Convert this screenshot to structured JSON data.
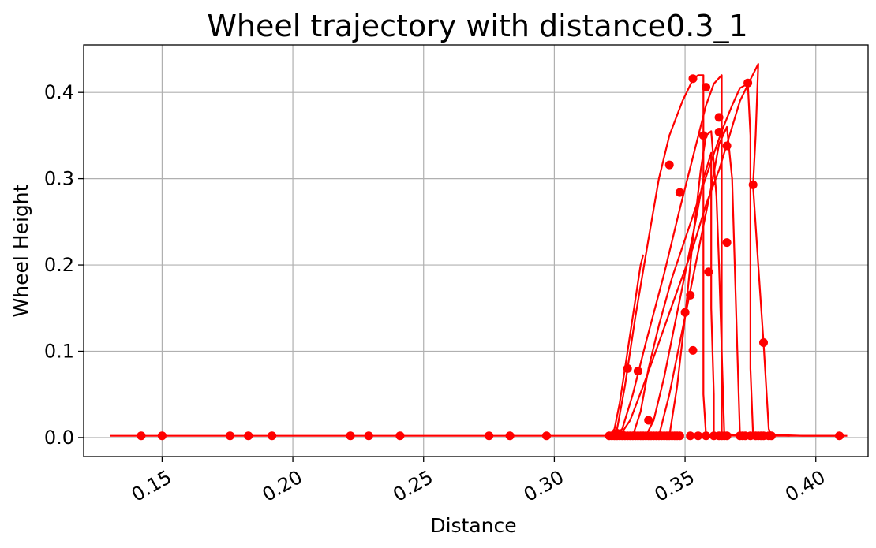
{
  "chart_data": {
    "type": "line",
    "title": "Wheel trajectory with distance0.3_1",
    "xlabel": "Distance",
    "ylabel": "Wheel Height",
    "xlim": [
      0.12,
      0.42
    ],
    "ylim": [
      -0.022,
      0.455
    ],
    "grid": true,
    "line_color": "#ff0000",
    "xticks": [
      {
        "value": 0.15,
        "label": "0.15"
      },
      {
        "value": 0.2,
        "label": "0.20"
      },
      {
        "value": 0.25,
        "label": "0.25"
      },
      {
        "value": 0.3,
        "label": "0.30"
      },
      {
        "value": 0.35,
        "label": "0.35"
      },
      {
        "value": 0.4,
        "label": "0.40"
      }
    ],
    "yticks": [
      {
        "value": 0.0,
        "label": "0.0"
      },
      {
        "value": 0.1,
        "label": "0.1"
      },
      {
        "value": 0.2,
        "label": "0.2"
      },
      {
        "value": 0.3,
        "label": "0.3"
      },
      {
        "value": 0.4,
        "label": "0.4"
      }
    ],
    "series": [
      {
        "points": [
          [
            0.13,
            0.002
          ],
          [
            0.2,
            0.002
          ],
          [
            0.26,
            0.002
          ],
          [
            0.3,
            0.002
          ],
          [
            0.321,
            0.002
          ],
          [
            0.323,
            0.01
          ],
          [
            0.325,
            0.04
          ],
          [
            0.327,
            0.08
          ],
          [
            0.329,
            0.12
          ],
          [
            0.331,
            0.16
          ],
          [
            0.333,
            0.2
          ],
          [
            0.334,
            0.212
          ]
        ]
      },
      {
        "points": [
          [
            0.322,
            0.002
          ],
          [
            0.324,
            0.01
          ],
          [
            0.327,
            0.06
          ],
          [
            0.331,
            0.14
          ],
          [
            0.336,
            0.23
          ],
          [
            0.34,
            0.3
          ],
          [
            0.344,
            0.35
          ],
          [
            0.349,
            0.39
          ],
          [
            0.353,
            0.415
          ],
          [
            0.355,
            0.42
          ],
          [
            0.357,
            0.42
          ],
          [
            0.357,
            0.3
          ],
          [
            0.357,
            0.15
          ],
          [
            0.357,
            0.05
          ],
          [
            0.358,
            0.003
          ],
          [
            0.37,
            0.002
          ],
          [
            0.412,
            0.002
          ]
        ]
      },
      {
        "points": [
          [
            0.323,
            0.002
          ],
          [
            0.326,
            0.01
          ],
          [
            0.33,
            0.05
          ],
          [
            0.335,
            0.11
          ],
          [
            0.342,
            0.19
          ],
          [
            0.348,
            0.265
          ],
          [
            0.353,
            0.325
          ],
          [
            0.358,
            0.385
          ],
          [
            0.361,
            0.41
          ],
          [
            0.364,
            0.42
          ],
          [
            0.364,
            0.3
          ],
          [
            0.364,
            0.15
          ],
          [
            0.364,
            0.05
          ],
          [
            0.364,
            0.004
          ],
          [
            0.38,
            0.002
          ]
        ]
      },
      {
        "points": [
          [
            0.325,
            0.002
          ],
          [
            0.329,
            0.02
          ],
          [
            0.334,
            0.06
          ],
          [
            0.34,
            0.11
          ],
          [
            0.347,
            0.17
          ],
          [
            0.353,
            0.22
          ],
          [
            0.358,
            0.27
          ],
          [
            0.363,
            0.31
          ],
          [
            0.367,
            0.35
          ],
          [
            0.371,
            0.39
          ],
          [
            0.375,
            0.415
          ],
          [
            0.378,
            0.433
          ],
          [
            0.377,
            0.35
          ],
          [
            0.376,
            0.292
          ],
          [
            0.378,
            0.2
          ],
          [
            0.38,
            0.11
          ],
          [
            0.381,
            0.06
          ],
          [
            0.382,
            0.01
          ],
          [
            0.383,
            0.003
          ],
          [
            0.39,
            0.002
          ]
        ]
      },
      {
        "points": [
          [
            0.33,
            0.002
          ],
          [
            0.333,
            0.03
          ],
          [
            0.336,
            0.08
          ],
          [
            0.34,
            0.13
          ],
          [
            0.345,
            0.185
          ],
          [
            0.35,
            0.23
          ],
          [
            0.355,
            0.275
          ],
          [
            0.36,
            0.32
          ],
          [
            0.364,
            0.355
          ],
          [
            0.368,
            0.385
          ],
          [
            0.371,
            0.405
          ],
          [
            0.374,
            0.41
          ],
          [
            0.375,
            0.35
          ],
          [
            0.375,
            0.2
          ],
          [
            0.375,
            0.08
          ],
          [
            0.376,
            0.004
          ],
          [
            0.395,
            0.002
          ],
          [
            0.41,
            0.002
          ]
        ]
      },
      {
        "points": [
          [
            0.335,
            0.002
          ],
          [
            0.338,
            0.02
          ],
          [
            0.342,
            0.07
          ],
          [
            0.346,
            0.13
          ],
          [
            0.35,
            0.19
          ],
          [
            0.354,
            0.25
          ],
          [
            0.357,
            0.3
          ],
          [
            0.36,
            0.33
          ],
          [
            0.36,
            0.25
          ],
          [
            0.36,
            0.15
          ],
          [
            0.361,
            0.05
          ],
          [
            0.361,
            0.003
          ]
        ]
      },
      {
        "points": [
          [
            0.34,
            0.002
          ],
          [
            0.344,
            0.05
          ],
          [
            0.348,
            0.11
          ],
          [
            0.352,
            0.17
          ],
          [
            0.356,
            0.23
          ],
          [
            0.36,
            0.29
          ],
          [
            0.363,
            0.34
          ],
          [
            0.366,
            0.36
          ],
          [
            0.368,
            0.3
          ],
          [
            0.369,
            0.2
          ],
          [
            0.37,
            0.1
          ],
          [
            0.371,
            0.003
          ]
        ]
      },
      {
        "points": [
          [
            0.344,
            0.002
          ],
          [
            0.347,
            0.06
          ],
          [
            0.35,
            0.14
          ],
          [
            0.353,
            0.23
          ],
          [
            0.356,
            0.31
          ],
          [
            0.358,
            0.35
          ],
          [
            0.36,
            0.355
          ],
          [
            0.362,
            0.28
          ],
          [
            0.363,
            0.2
          ],
          [
            0.364,
            0.1
          ],
          [
            0.365,
            0.003
          ]
        ]
      }
    ],
    "markers": [
      [
        0.142,
        0.002
      ],
      [
        0.15,
        0.002
      ],
      [
        0.176,
        0.002
      ],
      [
        0.183,
        0.002
      ],
      [
        0.192,
        0.002
      ],
      [
        0.222,
        0.002
      ],
      [
        0.229,
        0.002
      ],
      [
        0.241,
        0.002
      ],
      [
        0.275,
        0.002
      ],
      [
        0.283,
        0.002
      ],
      [
        0.297,
        0.002
      ],
      [
        0.321,
        0.002
      ],
      [
        0.322,
        0.002
      ],
      [
        0.323,
        0.002
      ],
      [
        0.324,
        0.002
      ],
      [
        0.325,
        0.002
      ],
      [
        0.326,
        0.002
      ],
      [
        0.327,
        0.002
      ],
      [
        0.328,
        0.002
      ],
      [
        0.329,
        0.002
      ],
      [
        0.33,
        0.002
      ],
      [
        0.331,
        0.002
      ],
      [
        0.332,
        0.002
      ],
      [
        0.333,
        0.002
      ],
      [
        0.334,
        0.002
      ],
      [
        0.335,
        0.002
      ],
      [
        0.336,
        0.002
      ],
      [
        0.337,
        0.002
      ],
      [
        0.338,
        0.002
      ],
      [
        0.339,
        0.002
      ],
      [
        0.34,
        0.002
      ],
      [
        0.341,
        0.002
      ],
      [
        0.342,
        0.002
      ],
      [
        0.343,
        0.002
      ],
      [
        0.344,
        0.002
      ],
      [
        0.345,
        0.002
      ],
      [
        0.346,
        0.002
      ],
      [
        0.347,
        0.002
      ],
      [
        0.348,
        0.002
      ],
      [
        0.352,
        0.002
      ],
      [
        0.355,
        0.002
      ],
      [
        0.358,
        0.002
      ],
      [
        0.361,
        0.002
      ],
      [
        0.363,
        0.002
      ],
      [
        0.364,
        0.002
      ],
      [
        0.365,
        0.002
      ],
      [
        0.366,
        0.002
      ],
      [
        0.371,
        0.002
      ],
      [
        0.372,
        0.002
      ],
      [
        0.373,
        0.002
      ],
      [
        0.375,
        0.002
      ],
      [
        0.377,
        0.002
      ],
      [
        0.378,
        0.002
      ],
      [
        0.379,
        0.002
      ],
      [
        0.38,
        0.002
      ],
      [
        0.382,
        0.002
      ],
      [
        0.383,
        0.002
      ],
      [
        0.409,
        0.002
      ],
      [
        0.324,
        0.005
      ],
      [
        0.326,
        0.003
      ],
      [
        0.328,
        0.08
      ],
      [
        0.332,
        0.077
      ],
      [
        0.336,
        0.02
      ],
      [
        0.344,
        0.316
      ],
      [
        0.348,
        0.284
      ],
      [
        0.35,
        0.145
      ],
      [
        0.352,
        0.165
      ],
      [
        0.353,
        0.101
      ],
      [
        0.353,
        0.416
      ],
      [
        0.357,
        0.35
      ],
      [
        0.358,
        0.406
      ],
      [
        0.359,
        0.192
      ],
      [
        0.363,
        0.371
      ],
      [
        0.363,
        0.354
      ],
      [
        0.366,
        0.338
      ],
      [
        0.366,
        0.226
      ],
      [
        0.374,
        0.411
      ],
      [
        0.376,
        0.293
      ],
      [
        0.38,
        0.11
      ]
    ]
  }
}
